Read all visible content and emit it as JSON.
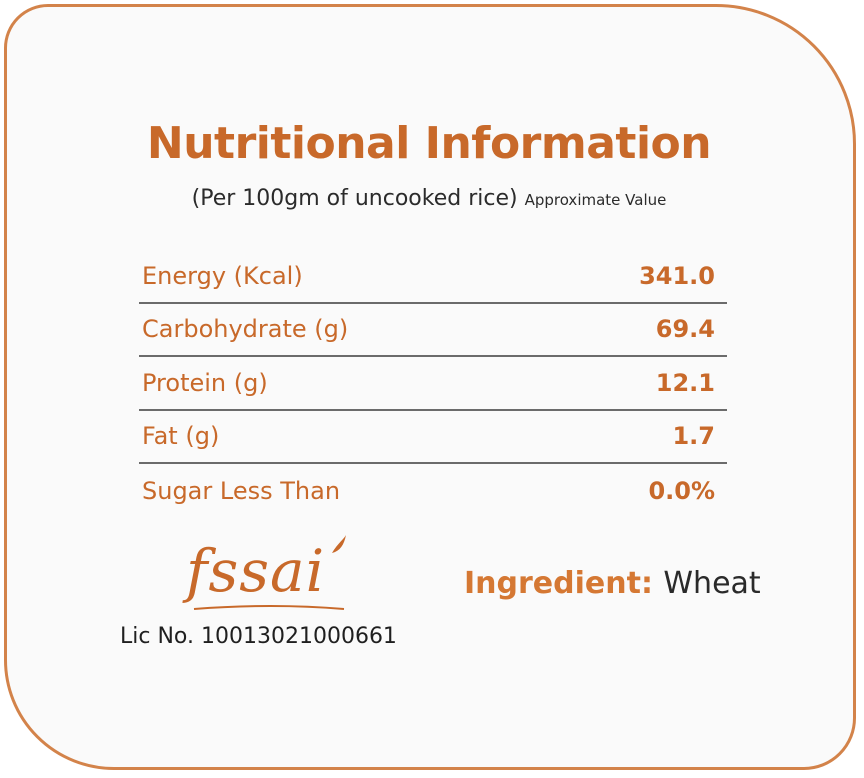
{
  "header": {
    "title": "Nutritional Information",
    "subtitle": "(Per 100gm of uncooked rice)",
    "subtitle_note": "Approximate Value"
  },
  "nutrition": [
    {
      "label": "Energy (Kcal)",
      "value": "341.0"
    },
    {
      "label": "Carbohydrate (g)",
      "value": "69.4"
    },
    {
      "label": "Protein (g)",
      "value": "12.1"
    },
    {
      "label": "Fat (g)",
      "value": "1.7"
    },
    {
      "label": "Sugar Less Than",
      "value": "0.0%"
    }
  ],
  "certification": {
    "logo_text": "fssai",
    "license": "Lic No. 10013021000661"
  },
  "ingredient": {
    "label": "Ingredient:",
    "value": "Wheat"
  },
  "colors": {
    "accent": "#c8692a",
    "border": "#d3834a",
    "text_dark": "#2b2b2b"
  }
}
